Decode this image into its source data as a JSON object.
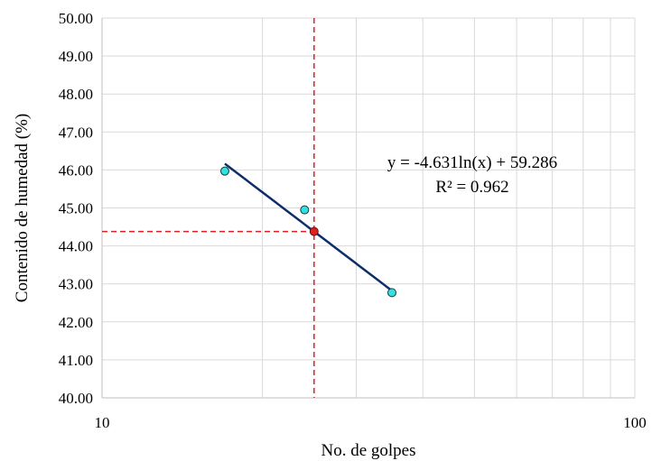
{
  "chart_data": {
    "type": "scatter",
    "xscale": "log",
    "xlim": [
      10,
      100
    ],
    "ylim": [
      40,
      50
    ],
    "x_ticks": [
      "10",
      "100"
    ],
    "y_ticks": [
      "40.00",
      "41.00",
      "42.00",
      "43.00",
      "44.00",
      "45.00",
      "46.00",
      "47.00",
      "48.00",
      "49.00",
      "50.00"
    ],
    "xlabel": "No. de golpes",
    "ylabel": "Contenido de humedad (%)",
    "grid": true,
    "series": [
      {
        "points": [
          {
            "x": 17,
            "y": 45.97
          },
          {
            "x": 24,
            "y": 44.95
          },
          {
            "x": 35,
            "y": 42.77
          }
        ],
        "color": "#33e0e0"
      }
    ],
    "trendline": {
      "type": "logarithmic",
      "slope": -4.631,
      "intercept": 59.286,
      "x_range": [
        17,
        35
      ],
      "color": "#0d2d6b",
      "equation_label": "y = -4.631ln(x)  + 59.286",
      "r2_label": "R² = 0.962"
    },
    "reference_point": {
      "x": 25,
      "y": 44.38,
      "color": "#e02020"
    },
    "reference_line_color": "#e02020"
  }
}
